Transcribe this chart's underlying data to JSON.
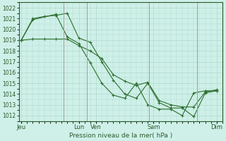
{
  "xlabel": "Pression niveau de la mer( hPa )",
  "ylim": [
    1011.5,
    1022.5
  ],
  "yticks": [
    1012,
    1013,
    1014,
    1015,
    1016,
    1017,
    1018,
    1019,
    1020,
    1021,
    1022
  ],
  "background_color": "#cef0e8",
  "grid_color": "#b0d8cc",
  "line_color": "#2d6e2d",
  "vline_color": "#aa9999",
  "xtick_labels": [
    "Jeu",
    "Lun",
    "Ven",
    "Sam",
    "Dim"
  ],
  "xtick_positions": [
    0.0,
    5.0,
    6.5,
    11.5,
    17.0
  ],
  "xlim": [
    -0.2,
    17.5
  ],
  "vlines_x": [
    3.7,
    5.7,
    11.1,
    15.3
  ],
  "series1_x": [
    0,
    1,
    2,
    3,
    4,
    5,
    6,
    7,
    8,
    9,
    10,
    11,
    12,
    13,
    14,
    15,
    16,
    17
  ],
  "series1_y": [
    1019.0,
    1021.0,
    1021.2,
    1021.3,
    1021.5,
    1019.2,
    1018.8,
    1017.0,
    1015.3,
    1014.0,
    1013.6,
    1015.0,
    1013.2,
    1012.7,
    1012.7,
    1011.9,
    1014.1,
    1014.3
  ],
  "series2_x": [
    0,
    1,
    2,
    3,
    4,
    5,
    6,
    7,
    8,
    9,
    10,
    11,
    12,
    13,
    14,
    15,
    16,
    17
  ],
  "series2_y": [
    1019.0,
    1019.1,
    1019.1,
    1019.1,
    1019.1,
    1018.5,
    1018.0,
    1017.3,
    1015.8,
    1015.2,
    1014.8,
    1015.1,
    1013.4,
    1013.0,
    1012.8,
    1012.8,
    1014.2,
    1014.4
  ],
  "series3_x": [
    0,
    1,
    3,
    4,
    5,
    6,
    7,
    8,
    9,
    10,
    11,
    12,
    13,
    14,
    15,
    16,
    17
  ],
  "series3_y": [
    1019.0,
    1020.9,
    1021.4,
    1019.3,
    1018.7,
    1016.9,
    1015.0,
    1013.9,
    1013.6,
    1015.0,
    1013.0,
    1012.6,
    1012.6,
    1012.0,
    1014.1,
    1014.3,
    1014.3
  ],
  "ytick_fontsize": 5.5,
  "xtick_fontsize": 6.0,
  "xlabel_fontsize": 6.5
}
